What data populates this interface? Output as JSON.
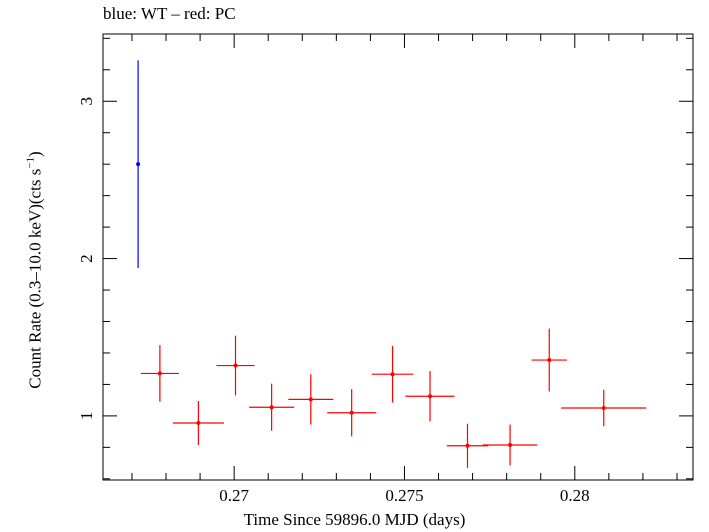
{
  "chart_data": {
    "type": "scatter",
    "title": "blue: WT – red: PC",
    "xlabel": "Time Since 59896.0 MJD (days)",
    "ylabel_main": "Count Rate (0.3–10.0 keV)(cts s",
    "ylabel_sup": "−1",
    "ylabel_end": ")",
    "xlim": [
      0.26615,
      0.28347
    ],
    "ylim": [
      0.5925,
      3.4275
    ],
    "x_ticks": [
      0.27,
      0.275,
      0.28
    ],
    "x_tick_labels": [
      "0.27",
      "0.275",
      "0.28"
    ],
    "y_ticks": [
      1,
      2,
      3
    ],
    "y_tick_labels": [
      "1",
      "2",
      "3"
    ],
    "grid": false,
    "series": [
      {
        "color": "#0000ff",
        "points": [
          {
            "x": 0.26718,
            "y": 2.6,
            "xerr": 0.0,
            "yerr": 0.66
          }
        ]
      },
      {
        "color": "#ff0000",
        "points": [
          {
            "x": 0.26782,
            "y": 1.27,
            "xerr": 0.00056,
            "yerr": 0.18
          },
          {
            "x": 0.26895,
            "y": 0.955,
            "xerr": 0.00075,
            "yerr": 0.14
          },
          {
            "x": 0.27004,
            "y": 1.32,
            "xerr": 0.00056,
            "yerr": 0.19
          },
          {
            "x": 0.2711,
            "y": 1.055,
            "xerr": 0.00066,
            "yerr": 0.15
          },
          {
            "x": 0.27225,
            "y": 1.105,
            "xerr": 0.00066,
            "yerr": 0.16
          },
          {
            "x": 0.27345,
            "y": 1.02,
            "xerr": 0.00072,
            "yerr": 0.15
          },
          {
            "x": 0.27465,
            "y": 1.265,
            "xerr": 0.00061,
            "yerr": 0.18
          },
          {
            "x": 0.27575,
            "y": 1.125,
            "xerr": 0.00072,
            "yerr": 0.16
          },
          {
            "x": 0.27685,
            "y": 0.81,
            "xerr": 0.00061,
            "yerr": 0.14
          },
          {
            "x": 0.2781,
            "y": 0.815,
            "xerr": 0.0008,
            "yerr": 0.13
          },
          {
            "x": 0.27925,
            "y": 1.355,
            "xerr": 0.00052,
            "yerr": 0.2
          },
          {
            "x": 0.28085,
            "y": 1.05,
            "xerr": 0.00125,
            "yerr": 0.115
          }
        ]
      }
    ]
  }
}
